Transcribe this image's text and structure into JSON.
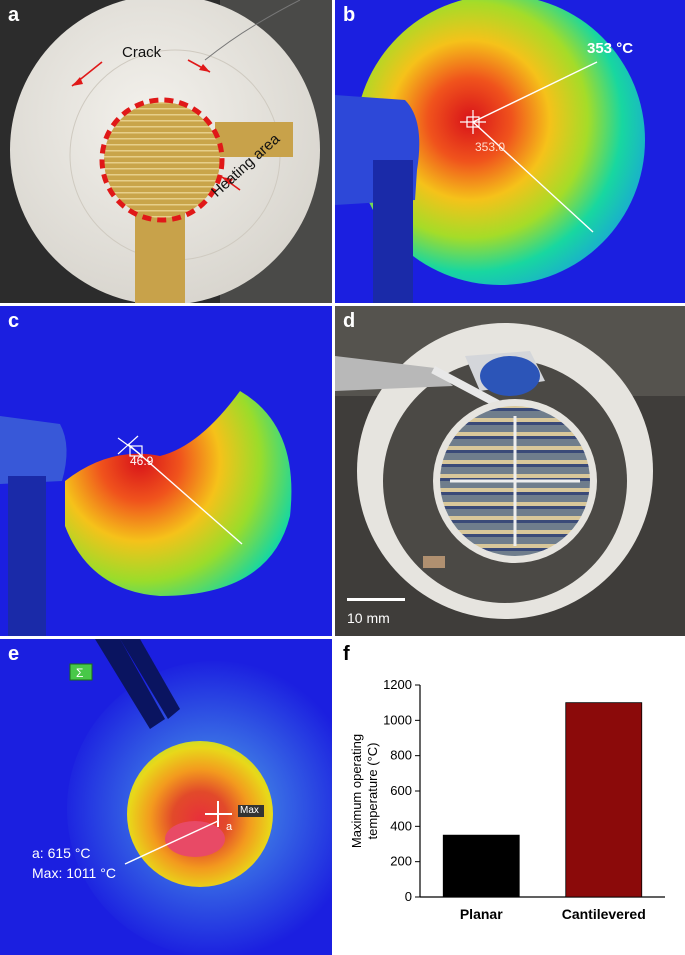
{
  "panels": {
    "a": {
      "label": "a",
      "crack_label": "Crack",
      "heating_label": "Heating area"
    },
    "b": {
      "label": "b",
      "max_label": "353 °C",
      "cursor_value": "353.0"
    },
    "c": {
      "label": "c",
      "cursor_value": "46.9"
    },
    "d": {
      "label": "d",
      "scale_bar": "10 mm"
    },
    "e": {
      "label": "e",
      "cursor_value": "Max",
      "cursor_tag": "a",
      "readout_a": "a: 615 °C",
      "readout_max": "Max: 1011 °C"
    },
    "f": {
      "label": "f"
    }
  },
  "colors": {
    "planar": "#000000",
    "cantilevered": "#8b0a0a"
  },
  "chart_data": {
    "type": "bar",
    "categories": [
      "Planar",
      "Cantilevered"
    ],
    "values": [
      350,
      1100
    ],
    "ylabel": "Maximum operating temperature (°C)",
    "ylim": [
      0,
      1200
    ],
    "yticks": [
      0,
      200,
      400,
      600,
      800,
      1000,
      1200
    ]
  }
}
